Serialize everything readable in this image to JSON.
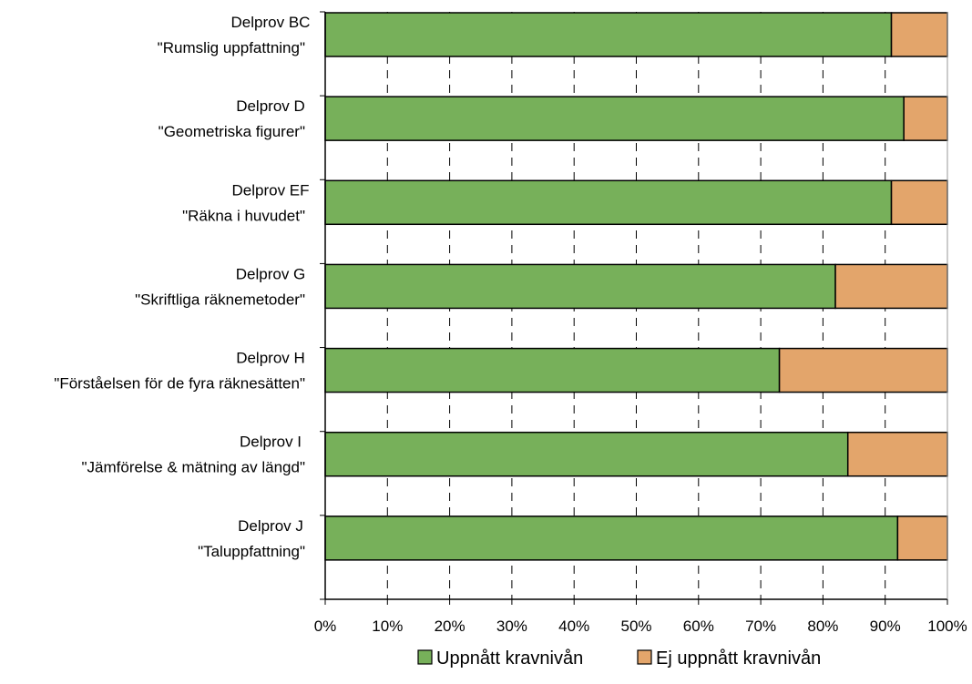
{
  "chart_data": {
    "type": "bar",
    "orientation": "horizontal",
    "stacked": true,
    "categories": [
      [
        "Delprov BC",
        "\"Rumslig uppfattning\""
      ],
      [
        "Delprov D",
        "\"Geometriska figurer\""
      ],
      [
        "Delprov EF",
        "\"Räkna i huvudet\""
      ],
      [
        "Delprov G",
        "\"Skriftliga räknemetoder\""
      ],
      [
        "Delprov H",
        "\"Förståelsen för de fyra räknesätten\""
      ],
      [
        "Delprov I",
        "\"Jämförelse & mätning av längd\""
      ],
      [
        "Delprov J",
        "\"Taluppfattning\""
      ]
    ],
    "series": [
      {
        "name": "Uppnått kravnivån",
        "color": "#77b05a",
        "values": [
          91,
          93,
          91,
          82,
          73,
          84,
          92
        ]
      },
      {
        "name": "Ej uppnått kravnivån",
        "color": "#e3a56b",
        "values": [
          9,
          7,
          9,
          18,
          27,
          16,
          8
        ]
      }
    ],
    "xlim": [
      0,
      100
    ],
    "x_ticks": [
      0,
      10,
      20,
      30,
      40,
      50,
      60,
      70,
      80,
      90,
      100
    ],
    "x_tick_labels": [
      "0%",
      "10%",
      "20%",
      "30%",
      "40%",
      "50%",
      "60%",
      "70%",
      "80%",
      "90%",
      "100%"
    ],
    "grid": "vertical dashed",
    "legend": "bottom",
    "title": "",
    "xlabel": "",
    "ylabel": ""
  }
}
